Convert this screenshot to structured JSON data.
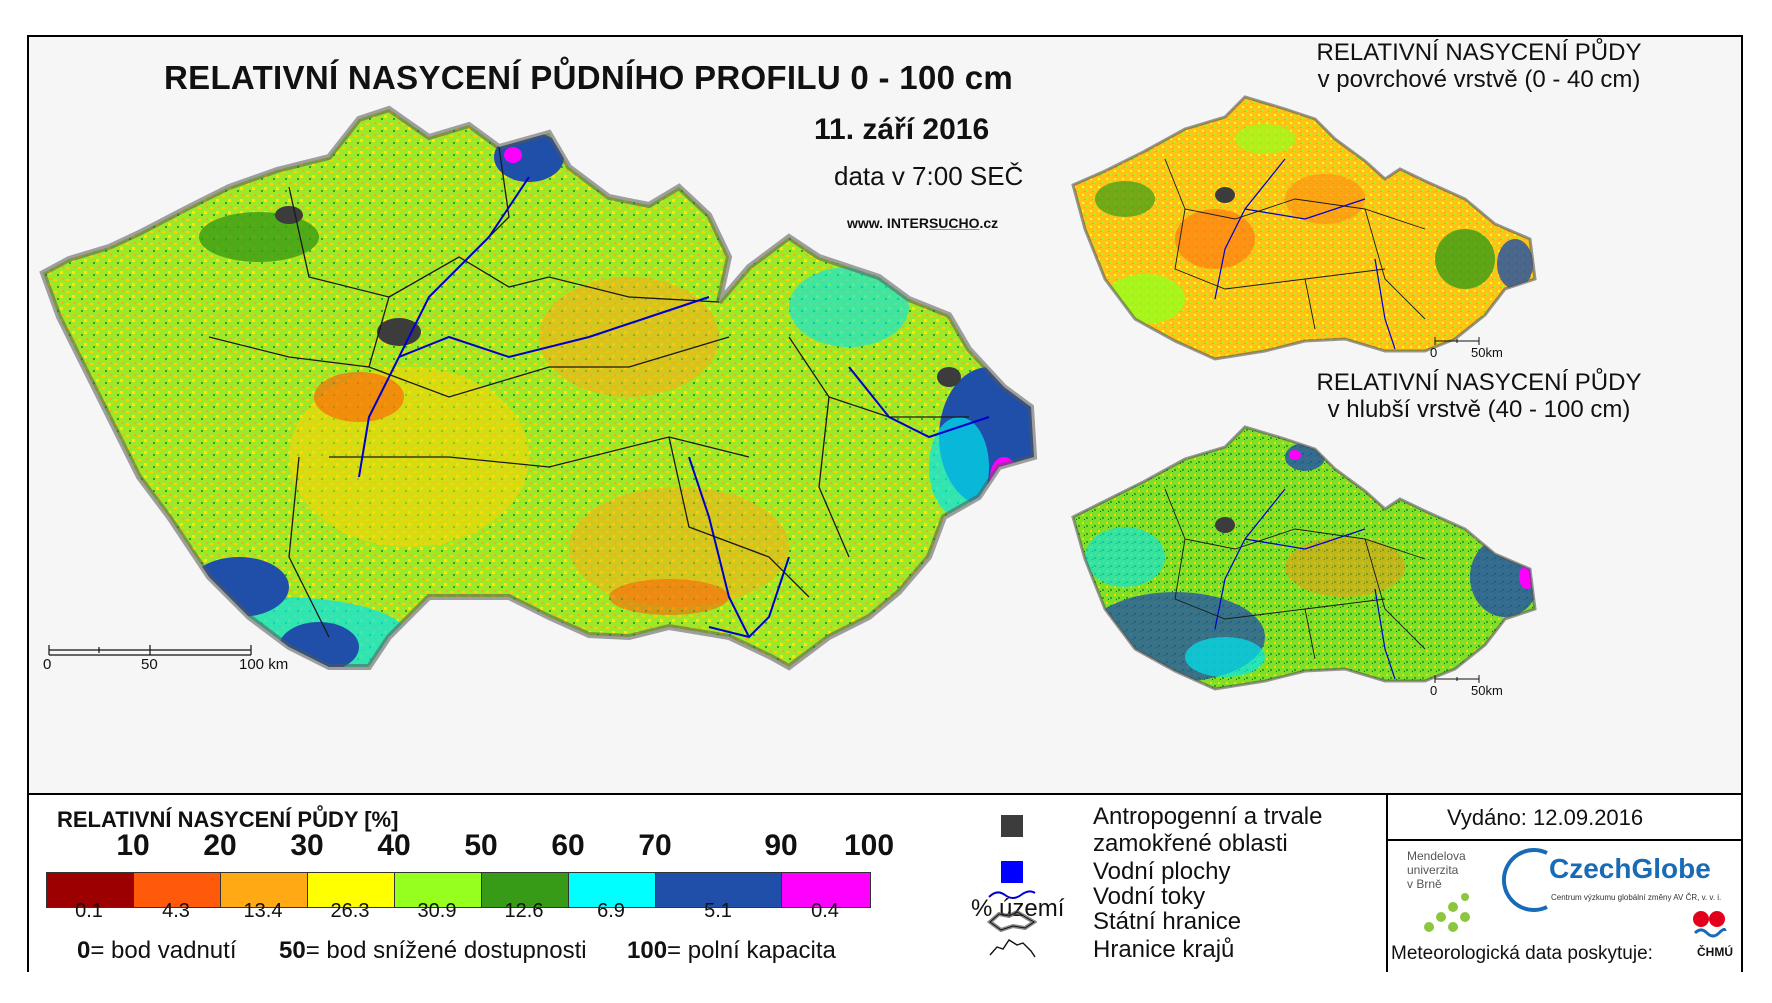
{
  "main_map": {
    "title": "RELATIVNÍ NASYCENÍ PŮDNÍHO PROFILU 0 - 100 cm",
    "date": "11. září 2016",
    "time": "data v 7:00 SEČ",
    "website_prefix": "www. INTER",
    "website_brand": "SUCHO",
    "website_suffix": ".cz",
    "scale": {
      "labels": [
        "0",
        "50",
        "100 km"
      ]
    }
  },
  "surface_map": {
    "title_line1": "RELATIVNÍ NASYCENÍ PŮDY",
    "title_line2": "v povrchové vrstvě (0 - 40 cm)",
    "scale": {
      "labels": [
        "0",
        "50km"
      ]
    }
  },
  "deep_map": {
    "title_line1": "RELATIVNÍ NASYCENÍ PŮDY",
    "title_line2": "v hlubší vrstvě (40 - 100 cm)",
    "scale": {
      "labels": [
        "0",
        "50km"
      ]
    }
  },
  "legend": {
    "title": "RELATIVNÍ NASYCENÍ PŮDY [%]",
    "ticks": [
      "10",
      "20",
      "30",
      "40",
      "50",
      "60",
      "70",
      "90",
      "100"
    ],
    "classes": [
      {
        "color": "#9c0000",
        "pct": "0.1"
      },
      {
        "color": "#ff5a0a",
        "pct": "4.3"
      },
      {
        "color": "#ffaa14",
        "pct": "13.4"
      },
      {
        "color": "#ffff00",
        "pct": "26.3"
      },
      {
        "color": "#96ff1e",
        "pct": "30.9"
      },
      {
        "color": "#389b17",
        "pct": "12.6"
      },
      {
        "color": "#00ffff",
        "pct": "6.9"
      },
      {
        "color": "#1f4fa8",
        "pct": "5.1"
      },
      {
        "color": "#ff00ff",
        "pct": "0.4"
      }
    ],
    "pct_unit": "% území",
    "def_0_num": "0",
    "def_0_text": "= bod vadnutí",
    "def_50_num": "50",
    "def_50_text": "= bod snížené dostupnosti",
    "def_100_num": "100",
    "def_100_text": "= polní kapacita"
  },
  "symbols": {
    "anthro_line1": "Antropogenní a trvale",
    "anthro_line2": "zamokřené oblasti",
    "water_bodies": "Vodní plochy",
    "rivers": "Vodní toky",
    "state_border": "Státní hranice",
    "region_border": "Hranice krajů",
    "colors": {
      "anthro": "#3c3c3c",
      "water": "#0000ff",
      "river": "#0000cc"
    }
  },
  "issued": "Vydáno: 12.09.2016",
  "credits": {
    "mendel_line1": "Mendelova",
    "mendel_line2": "univerzita",
    "mendel_line3": "v Brně",
    "czechglobe": "CzechGlobe",
    "czechglobe_sub": "Centrum výzkumu globální změny AV ČR, v. v. i.",
    "meteo": "Meteorologická data poskytuje:",
    "chmu": "ČHMÚ"
  }
}
